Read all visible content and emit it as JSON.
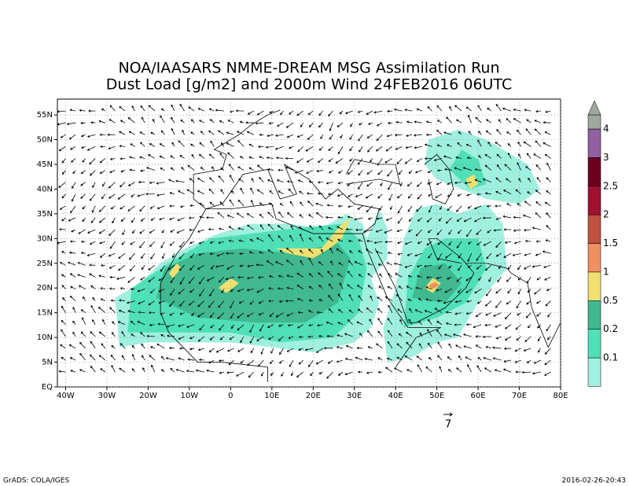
{
  "map": {
    "title": [
      "NOA/IAASARS NMME-DREAM MSG Assimilation Run",
      "Dust Load [g/m2] and 2000m Wind 24FEB2016 06UTC"
    ],
    "xlim": [
      -42,
      80
    ],
    "ylim": [
      0,
      58.2
    ],
    "xticks": [
      {
        "value": -40,
        "label": "40W"
      },
      {
        "value": -30,
        "label": "30W"
      },
      {
        "value": -20,
        "label": "20W"
      },
      {
        "value": -10,
        "label": "10W"
      },
      0,
      {
        "value": 10,
        "label": "10E"
      },
      {
        "value": 20,
        "label": "20E"
      },
      {
        "value": 30,
        "label": "30E"
      },
      {
        "value": 40,
        "label": "40E"
      },
      {
        "value": 50,
        "label": "50E"
      },
      {
        "value": 60,
        "label": "60E"
      },
      {
        "value": 70,
        "label": "70E"
      },
      {
        "value": 80,
        "label": "80E"
      }
    ],
    "yticks": [
      {
        "value": 0,
        "label": "EQ"
      },
      {
        "value": 5,
        "label": "5N"
      },
      {
        "value": 10,
        "label": "10N"
      },
      {
        "value": 15,
        "label": "15N"
      },
      {
        "value": 20,
        "label": "20N"
      },
      {
        "value": 25,
        "label": "25N"
      },
      {
        "value": 30,
        "label": "30N"
      },
      {
        "value": 35,
        "label": "35N"
      },
      {
        "value": 40,
        "label": "40N"
      },
      {
        "value": 45,
        "label": "45N"
      },
      {
        "value": 50,
        "label": "50N"
      },
      {
        "value": 55,
        "label": "55N"
      }
    ],
    "colorbar": {
      "levels": [
        0.1,
        0.2,
        0.5,
        1,
        1.5,
        2,
        2.5,
        3,
        4
      ],
      "colors": [
        "#a0f0e0",
        "#50e0b8",
        "#40b890",
        "#f0e070",
        "#f09060",
        "#c05040",
        "#a01030",
        "#700020",
        "#9060a0",
        "#a0a8a0"
      ]
    },
    "wind_reference": "7",
    "footer_left": "GrADS: COLA/IGES",
    "footer_right": "2016-02-26-20:43"
  }
}
